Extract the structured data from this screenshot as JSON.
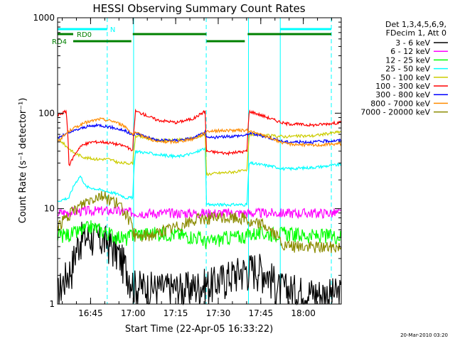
{
  "chart_data": {
    "type": "line",
    "title": "HESSI Observing Summary Count Rates",
    "xlabel": "Start Time (22-Apr-05 16:33:22)",
    "ylabel": "Count Rate (s⁻¹ detector⁻¹)",
    "y_scale": "log",
    "ylim": [
      1,
      1000
    ],
    "y_ticks": [
      {
        "value": 1,
        "label": "1"
      },
      {
        "value": 10,
        "label": "10"
      },
      {
        "value": 100,
        "label": "100"
      },
      {
        "value": 1000,
        "label": "1000"
      }
    ],
    "xlim_minutes": [
      0,
      100
    ],
    "x_ticks": [
      {
        "minute": 11.63,
        "label": "16:45"
      },
      {
        "minute": 26.63,
        "label": "17:00"
      },
      {
        "minute": 41.63,
        "label": "17:15"
      },
      {
        "minute": 56.63,
        "label": "17:30"
      },
      {
        "minute": 71.63,
        "label": "17:45"
      },
      {
        "minute": 86.63,
        "label": "18:00"
      }
    ],
    "legend": {
      "placement": "top-right outside",
      "header": [
        "Det 1,3,4,5,6,9,",
        "FDecim 1, Att 0"
      ]
    },
    "series": [
      {
        "name": "3 - 6 keV",
        "color": "#000000",
        "points": [
          [
            0,
            1.3
          ],
          [
            5,
            2.5
          ],
          [
            8,
            5
          ],
          [
            12,
            5.2
          ],
          [
            18,
            4.5
          ],
          [
            24,
            2.5
          ],
          [
            27,
            1.6
          ],
          [
            35,
            1.5
          ],
          [
            45,
            1.5
          ],
          [
            50,
            1.6
          ],
          [
            55,
            1.7
          ],
          [
            60,
            2
          ],
          [
            65,
            2.3
          ],
          [
            70,
            2.5
          ],
          [
            73,
            2.3
          ],
          [
            78,
            1.5
          ],
          [
            85,
            1.4
          ],
          [
            95,
            1.3
          ],
          [
            100,
            1.3
          ]
        ]
      },
      {
        "name": "6 - 12 keV",
        "color": "#ff00ff",
        "points": [
          [
            0,
            9
          ],
          [
            10,
            9.5
          ],
          [
            20,
            9.5
          ],
          [
            30,
            9
          ],
          [
            40,
            9
          ],
          [
            50,
            9
          ],
          [
            60,
            9
          ],
          [
            70,
            9
          ],
          [
            80,
            9
          ],
          [
            90,
            9
          ],
          [
            100,
            9
          ]
        ]
      },
      {
        "name": "12 - 25 keV",
        "color": "#00ff00",
        "points": [
          [
            0,
            5.2
          ],
          [
            6,
            5.5
          ],
          [
            12,
            6.5
          ],
          [
            18,
            5.5
          ],
          [
            24,
            4.8
          ],
          [
            27,
            5.5
          ],
          [
            40,
            5.5
          ],
          [
            50,
            5
          ],
          [
            52,
            4.5
          ],
          [
            53.4,
            4.5
          ],
          [
            60,
            5
          ],
          [
            66.8,
            5.2
          ],
          [
            67.6,
            5.5
          ],
          [
            80,
            5.5
          ],
          [
            90,
            5.2
          ],
          [
            100,
            5.2
          ]
        ]
      },
      {
        "name": "25 - 50 keV",
        "color": "#00ffff",
        "points": [
          [
            0,
            12
          ],
          [
            4,
            13
          ],
          [
            6,
            18
          ],
          [
            8,
            22
          ],
          [
            10,
            17
          ],
          [
            14,
            16
          ],
          [
            18,
            15
          ],
          [
            22,
            14
          ],
          [
            24,
            13
          ],
          [
            26.5,
            13
          ],
          [
            27.5,
            40
          ],
          [
            35,
            37
          ],
          [
            42,
            35
          ],
          [
            48,
            38
          ],
          [
            52,
            43
          ],
          [
            52.4,
            11
          ],
          [
            60,
            11
          ],
          [
            66.8,
            11
          ],
          [
            67.6,
            30
          ],
          [
            75,
            28
          ],
          [
            80,
            26
          ],
          [
            90,
            27
          ],
          [
            100,
            29
          ]
        ]
      },
      {
        "name": "50 - 100 keV",
        "color": "#cccc00",
        "points": [
          [
            0,
            55
          ],
          [
            3,
            45
          ],
          [
            6,
            38
          ],
          [
            10,
            34
          ],
          [
            14,
            33
          ],
          [
            18,
            33
          ],
          [
            22,
            30
          ],
          [
            26.5,
            30
          ],
          [
            27.5,
            58
          ],
          [
            35,
            52
          ],
          [
            42,
            52
          ],
          [
            48,
            55
          ],
          [
            52,
            60
          ],
          [
            52.4,
            23
          ],
          [
            60,
            24
          ],
          [
            66.8,
            25
          ],
          [
            67.6,
            60
          ],
          [
            75,
            58
          ],
          [
            80,
            57
          ],
          [
            90,
            58
          ],
          [
            100,
            64
          ]
        ]
      },
      {
        "name": "100 - 300 keV",
        "color": "#ff0000",
        "points": [
          [
            0,
            95
          ],
          [
            3,
            105
          ],
          [
            4,
            28
          ],
          [
            8,
            45
          ],
          [
            12,
            50
          ],
          [
            16,
            50
          ],
          [
            20,
            48
          ],
          [
            24,
            45
          ],
          [
            26.5,
            40
          ],
          [
            27.5,
            105
          ],
          [
            35,
            85
          ],
          [
            42,
            80
          ],
          [
            48,
            88
          ],
          [
            52,
            105
          ],
          [
            52.4,
            40
          ],
          [
            60,
            38
          ],
          [
            66.8,
            40
          ],
          [
            67.6,
            105
          ],
          [
            75,
            88
          ],
          [
            80,
            78
          ],
          [
            90,
            75
          ],
          [
            100,
            80
          ]
        ]
      },
      {
        "name": "300 - 800 keV",
        "color": "#0000ff",
        "points": [
          [
            0,
            55
          ],
          [
            5,
            64
          ],
          [
            10,
            72
          ],
          [
            15,
            75
          ],
          [
            20,
            70
          ],
          [
            24,
            65
          ],
          [
            26.5,
            58
          ],
          [
            27.5,
            62
          ],
          [
            35,
            52
          ],
          [
            42,
            52
          ],
          [
            48,
            55
          ],
          [
            52,
            63
          ],
          [
            52.4,
            55
          ],
          [
            60,
            57
          ],
          [
            66.8,
            59
          ],
          [
            67.6,
            62
          ],
          [
            75,
            55
          ],
          [
            80,
            50
          ],
          [
            90,
            50
          ],
          [
            100,
            52
          ]
        ]
      },
      {
        "name": "800 - 7000 keV",
        "color": "#ff8c00",
        "points": [
          [
            0,
            50
          ],
          [
            5,
            68
          ],
          [
            10,
            80
          ],
          [
            15,
            87
          ],
          [
            20,
            82
          ],
          [
            24,
            72
          ],
          [
            26.5,
            60
          ],
          [
            27.5,
            62
          ],
          [
            35,
            50
          ],
          [
            42,
            50
          ],
          [
            48,
            54
          ],
          [
            52,
            62
          ],
          [
            52.4,
            65
          ],
          [
            60,
            66
          ],
          [
            66.8,
            66
          ],
          [
            67.6,
            65
          ],
          [
            75,
            55
          ],
          [
            80,
            48
          ],
          [
            90,
            46
          ],
          [
            100,
            48
          ]
        ]
      },
      {
        "name": "7000 - 20000 keV",
        "color": "#8b8b00",
        "points": [
          [
            0,
            6.5
          ],
          [
            5,
            9
          ],
          [
            10,
            12
          ],
          [
            15,
            14
          ],
          [
            20,
            12
          ],
          [
            24,
            9
          ],
          [
            26.5,
            6
          ],
          [
            27.5,
            5
          ],
          [
            35,
            5.5
          ],
          [
            42,
            6.5
          ],
          [
            48,
            7.5
          ],
          [
            52,
            8
          ],
          [
            52.4,
            8
          ],
          [
            60,
            8
          ],
          [
            66.8,
            8
          ],
          [
            67.6,
            7
          ],
          [
            72,
            7
          ],
          [
            75,
            6
          ],
          [
            80,
            4
          ],
          [
            90,
            4
          ],
          [
            100,
            4
          ]
        ]
      }
    ],
    "state_bars": [
      {
        "label": "N",
        "color": "#00ffff",
        "segments": [
          [
            0,
            17.5
          ],
          [
            78.5,
            96.5
          ]
        ]
      },
      {
        "label": "RD0",
        "color": "#008000",
        "segments": [
          [
            0,
            5.5
          ],
          [
            26.5,
            52.5
          ],
          [
            67,
            96.5
          ]
        ]
      },
      {
        "label": "RD4",
        "color": "#008000",
        "segments": [
          [
            5.5,
            26
          ],
          [
            52.5,
            66
          ]
        ]
      }
    ],
    "vertical_markers": [
      {
        "minute": 0,
        "color": "#00ffff",
        "style": "solid"
      },
      {
        "minute": 17.5,
        "color": "#00ffff",
        "style": "dashed"
      },
      {
        "minute": 26.8,
        "color": "#00ffff",
        "style": "solid"
      },
      {
        "minute": 52.4,
        "color": "#00ffff",
        "style": "dashed"
      },
      {
        "minute": 67.3,
        "color": "#00ffff",
        "style": "solid"
      },
      {
        "minute": 78.5,
        "color": "#00ffff",
        "style": "solid"
      },
      {
        "minute": 96.5,
        "color": "#00ffff",
        "style": "dashed"
      }
    ],
    "grid": false
  },
  "footer": {
    "timestamp": "20-Mar-2010 03:20"
  }
}
